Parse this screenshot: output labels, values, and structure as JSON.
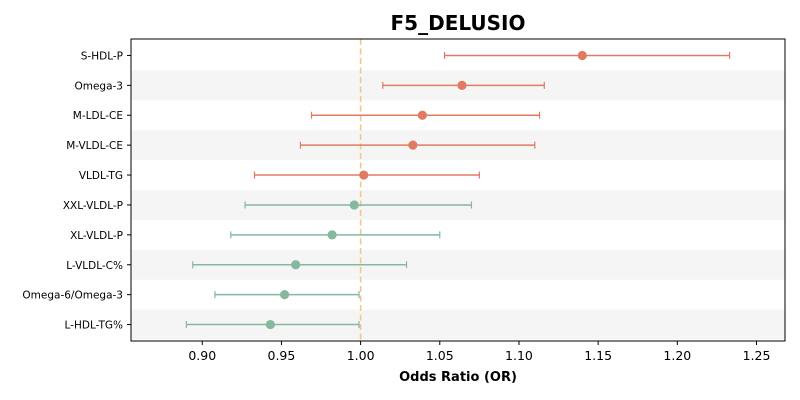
{
  "chart_data": {
    "type": "scatter",
    "subtype": "forest-plot",
    "title": "F5_DELUSIO",
    "xlabel": "Odds Ratio (OR)",
    "ylabel": "",
    "xlim": [
      0.855,
      1.268
    ],
    "xticks": [
      0.9,
      0.95,
      1.0,
      1.05,
      1.1,
      1.15,
      1.2,
      1.25
    ],
    "xtick_labels": [
      "0.90",
      "0.95",
      "1.00",
      "1.05",
      "1.10",
      "1.15",
      "1.20",
      "1.25"
    ],
    "reference_line": 1.0,
    "grid": false,
    "alternating_row_shading": true,
    "colors": {
      "positive": "#e07b62",
      "negative": "#85b89f",
      "reference": "#f0c987",
      "stripe": "#f5f5f5"
    },
    "rows": [
      {
        "label": "S-HDL-P",
        "or": 1.14,
        "ci_low": 1.053,
        "ci_high": 1.233,
        "group": "positive"
      },
      {
        "label": "Omega-3",
        "or": 1.064,
        "ci_low": 1.014,
        "ci_high": 1.116,
        "group": "positive"
      },
      {
        "label": "M-LDL-CE",
        "or": 1.039,
        "ci_low": 0.969,
        "ci_high": 1.113,
        "group": "positive"
      },
      {
        "label": "M-VLDL-CE",
        "or": 1.033,
        "ci_low": 0.962,
        "ci_high": 1.11,
        "group": "positive"
      },
      {
        "label": "VLDL-TG",
        "or": 1.002,
        "ci_low": 0.933,
        "ci_high": 1.075,
        "group": "positive"
      },
      {
        "label": "XXL-VLDL-P",
        "or": 0.996,
        "ci_low": 0.927,
        "ci_high": 1.07,
        "group": "negative"
      },
      {
        "label": "XL-VLDL-P",
        "or": 0.982,
        "ci_low": 0.918,
        "ci_high": 1.05,
        "group": "negative"
      },
      {
        "label": "L-VLDL-C%",
        "or": 0.959,
        "ci_low": 0.894,
        "ci_high": 1.029,
        "group": "negative"
      },
      {
        "label": "Omega-6/Omega-3",
        "or": 0.952,
        "ci_low": 0.908,
        "ci_high": 0.999,
        "group": "negative"
      },
      {
        "label": "L-HDL-TG%",
        "or": 0.943,
        "ci_low": 0.89,
        "ci_high": 0.999,
        "group": "negative"
      }
    ]
  }
}
